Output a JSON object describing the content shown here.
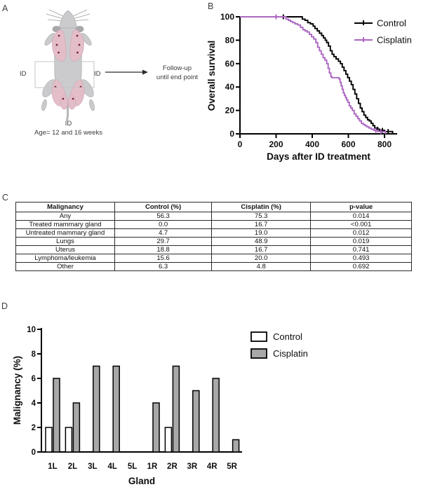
{
  "figure": {
    "panel_labels": {
      "a": "A",
      "b": "B",
      "c": "C",
      "d": "D"
    }
  },
  "panel_a": {
    "id_label_left": "ID",
    "id_label_right": "ID",
    "followup_line1": "Follow-up",
    "followup_line2": "until end point",
    "caption_line1": "ID",
    "caption_line2": "Age= 12 and 16 weeks"
  },
  "colors": {
    "control_line": "#000000",
    "cisplatin_line": "#ab66c1",
    "control_bar_fill": "#ffffff",
    "cisplatin_bar_fill": "#a8a8a8",
    "mouse_body": "#cbcbce",
    "mouse_ear": "#a9a9ad",
    "mammary_gland_pink": "#e3bec9",
    "nipple_dot": "#7a2333"
  },
  "chart_data": [
    {
      "id": "survival",
      "panel": "B",
      "type": "line",
      "subtype": "kaplan_meier_step",
      "title": "",
      "xlabel": "Days after ID treatment",
      "ylabel": "Overall survival",
      "xlim": [
        0,
        870
      ],
      "ylim": [
        0,
        100
      ],
      "xticks": [
        0,
        200,
        400,
        600,
        800
      ],
      "yticks": [
        0,
        20,
        40,
        60,
        80,
        100
      ],
      "grid": false,
      "legend_position": "top-right",
      "series": [
        {
          "name": "Control",
          "color": "#000000",
          "steps": [
            [
              0,
              100
            ],
            [
              345,
              98
            ],
            [
              360,
              97
            ],
            [
              375,
              95
            ],
            [
              390,
              94
            ],
            [
              405,
              92
            ],
            [
              415,
              90
            ],
            [
              428,
              88
            ],
            [
              440,
              86
            ],
            [
              452,
              84
            ],
            [
              462,
              82
            ],
            [
              472,
              80
            ],
            [
              480,
              78
            ],
            [
              490,
              75
            ],
            [
              500,
              71
            ],
            [
              510,
              68
            ],
            [
              520,
              66
            ],
            [
              532,
              64
            ],
            [
              545,
              62
            ],
            [
              556,
              60
            ],
            [
              566,
              57
            ],
            [
              576,
              54
            ],
            [
              586,
              51
            ],
            [
              596,
              48
            ],
            [
              606,
              45
            ],
            [
              616,
              42
            ],
            [
              626,
              38
            ],
            [
              636,
              34
            ],
            [
              646,
              30
            ],
            [
              656,
              26
            ],
            [
              666,
              22
            ],
            [
              676,
              19
            ],
            [
              686,
              16
            ],
            [
              696,
              14
            ],
            [
              706,
              12
            ],
            [
              716,
              11
            ],
            [
              726,
              9
            ],
            [
              736,
              7
            ],
            [
              746,
              5
            ],
            [
              758,
              4
            ],
            [
              772,
              3
            ],
            [
              800,
              2
            ],
            [
              845,
              0
            ]
          ],
          "censor_marks": [
            [
              240,
              100
            ],
            [
              762,
              4
            ],
            [
              788,
              3
            ],
            [
              820,
              2
            ]
          ]
        },
        {
          "name": "Cisplatin",
          "color": "#ab66c1",
          "steps": [
            [
              0,
              100
            ],
            [
              255,
              98
            ],
            [
              268,
              97
            ],
            [
              280,
              96
            ],
            [
              292,
              95
            ],
            [
              305,
              94
            ],
            [
              320,
              93
            ],
            [
              335,
              91
            ],
            [
              348,
              89
            ],
            [
              360,
              88
            ],
            [
              372,
              87
            ],
            [
              384,
              85
            ],
            [
              396,
              83
            ],
            [
              408,
              81
            ],
            [
              420,
              78
            ],
            [
              430,
              74
            ],
            [
              440,
              71
            ],
            [
              450,
              68
            ],
            [
              460,
              65
            ],
            [
              470,
              63
            ],
            [
              480,
              60
            ],
            [
              488,
              56
            ],
            [
              495,
              52
            ],
            [
              503,
              49
            ],
            [
              508,
              48
            ],
            [
              548,
              47
            ],
            [
              554,
              44
            ],
            [
              560,
              41
            ],
            [
              566,
              38
            ],
            [
              572,
              35
            ],
            [
              578,
              33
            ],
            [
              584,
              31
            ],
            [
              590,
              29
            ],
            [
              597,
              27
            ],
            [
              605,
              24
            ],
            [
              613,
              22
            ],
            [
              622,
              20
            ],
            [
              632,
              17
            ],
            [
              642,
              15
            ],
            [
              652,
              13
            ],
            [
              662,
              11
            ],
            [
              672,
              9
            ],
            [
              682,
              8
            ],
            [
              692,
              7
            ],
            [
              702,
              6
            ],
            [
              714,
              5
            ],
            [
              726,
              4
            ],
            [
              740,
              3
            ],
            [
              762,
              2
            ],
            [
              805,
              0
            ]
          ],
          "censor_marks": [
            [
              200,
              100
            ],
            [
              752,
              3
            ],
            [
              780,
              2
            ]
          ]
        }
      ]
    },
    {
      "id": "malignancy_table",
      "panel": "C",
      "type": "table",
      "headers": [
        "Malignancy",
        "Control (%)",
        "Cisplatin (%)",
        "p-value"
      ],
      "rows": [
        [
          "Any",
          "56.3",
          "75.3",
          "0.014"
        ],
        [
          "Treated mammary gland",
          "0.0",
          "16.7",
          "<0.001"
        ],
        [
          "Untreated mammary gland",
          "4.7",
          "19.0",
          "0.012"
        ],
        [
          "Lungs",
          "29.7",
          "48.9",
          "0.019"
        ],
        [
          "Uterus",
          "18.8",
          "16.7",
          "0.741"
        ],
        [
          "Lymphoma/leukemia",
          "15.6",
          "20.0",
          "0.493"
        ],
        [
          "Other",
          "6.3",
          "4.8",
          "0.692"
        ]
      ]
    },
    {
      "id": "gland_bars",
      "panel": "D",
      "type": "bar",
      "title": "",
      "xlabel": "Gland",
      "ylabel": "Malignancy (%)",
      "ylim": [
        0,
        10
      ],
      "yticks": [
        0,
        2,
        4,
        6,
        8,
        10
      ],
      "grid": false,
      "legend_position": "top-right",
      "categories": [
        "1L",
        "2L",
        "3L",
        "4L",
        "5L",
        "1R",
        "2R",
        "3R",
        "4R",
        "5R"
      ],
      "series": [
        {
          "name": "Control",
          "fill": "#ffffff",
          "values": [
            2,
            2,
            0,
            0,
            0,
            0,
            2,
            0,
            0,
            0
          ]
        },
        {
          "name": "Cisplatin",
          "fill": "#a8a8a8",
          "values": [
            6,
            4,
            7,
            7,
            0,
            4,
            7,
            5,
            6,
            1
          ]
        }
      ]
    }
  ]
}
